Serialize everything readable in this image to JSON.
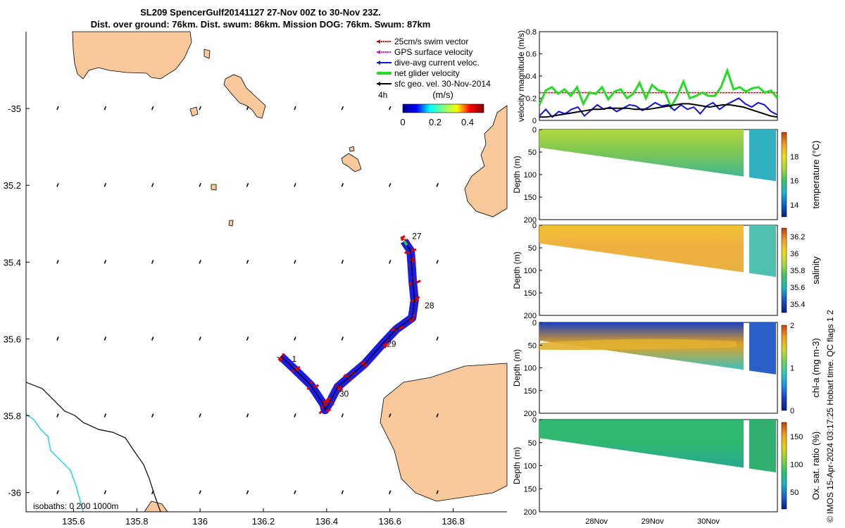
{
  "title_line1": "SL209 SpencerGulf20141127 27-Nov 00Z to 30-Nov 23Z.",
  "title_line2": "Dist. over ground: 76km. Dist. swum: 86km. Mission DOG: 76km. Swum: 87km",
  "credit": "© IMOS 15-Apr-2024 03:17:25 Hobart time. QC flags 1  2",
  "colors": {
    "land": "#f9c89b",
    "swim": "#e00000",
    "gps": "#e000e0",
    "current": "#1010e0",
    "net": "#22dd22",
    "geo": "#000000",
    "isobath200": "#000000",
    "isobath1000": "#22d3e6"
  },
  "chart_data": [
    {
      "type": "scatter",
      "subtype": "glider-track-map",
      "xlim": [
        135.45,
        136.97
      ],
      "ylim": [
        -36.05,
        -34.8
      ],
      "x_ticks": [
        "135.6",
        "135.8",
        "136",
        "136.2",
        "136.4",
        "136.6",
        "136.8"
      ],
      "x_tick_values": [
        135.6,
        135.8,
        136.0,
        136.2,
        136.4,
        136.6,
        136.8
      ],
      "y_ticks": [
        "-35",
        "35.2",
        "35.4",
        "35.6",
        "35.8",
        "-36"
      ],
      "y_tick_values": [
        -35.0,
        -35.2,
        -35.4,
        -35.6,
        -35.8,
        -36.0
      ],
      "legend": [
        {
          "label": "25cm/s swim vector",
          "color": "#e00000"
        },
        {
          "label": "GPS surface velocity",
          "color": "#e000e0"
        },
        {
          "label": "dive-avg current veloc.",
          "color": "#1010e0"
        },
        {
          "label": "net glider velocity",
          "color": "#22dd22"
        },
        {
          "label": "sfc geo. vel. 30-Nov-2014",
          "color": "#000000"
        }
      ],
      "legend_location": "top-right",
      "time_step_label": "4h",
      "colorbar": {
        "label": "(m/s)",
        "ticks": [
          "0",
          "0.2",
          "0.4"
        ],
        "tick_values": [
          0,
          0.2,
          0.4
        ],
        "range": [
          0,
          0.5
        ]
      },
      "day_labels": [
        {
          "text": "1",
          "lon": 136.29,
          "lat": -35.66
        },
        {
          "text": "27",
          "lon": 136.67,
          "lat": -35.34
        },
        {
          "text": "28",
          "lon": 136.71,
          "lat": -35.52
        },
        {
          "text": "29",
          "lon": 136.59,
          "lat": -35.62
        },
        {
          "text": "30",
          "lon": 136.44,
          "lat": -35.75
        }
      ],
      "track": [
        [
          136.645,
          -35.345
        ],
        [
          136.665,
          -35.37
        ],
        [
          136.668,
          -35.4
        ],
        [
          136.672,
          -35.45
        ],
        [
          136.678,
          -35.5
        ],
        [
          136.67,
          -35.545
        ],
        [
          136.62,
          -35.575
        ],
        [
          136.58,
          -35.61
        ],
        [
          136.52,
          -35.665
        ],
        [
          136.47,
          -35.7
        ],
        [
          136.435,
          -35.725
        ],
        [
          136.41,
          -35.765
        ],
        [
          136.395,
          -35.785
        ],
        [
          136.39,
          -35.77
        ],
        [
          136.35,
          -35.72
        ],
        [
          136.3,
          -35.68
        ],
        [
          136.255,
          -35.645
        ]
      ],
      "isobaths_label": "isobaths: 0   200  1000m"
    },
    {
      "type": "line",
      "ylabel": "velocity magnitude (m/s)",
      "ylim": [
        0,
        0.8
      ],
      "y_ticks": [
        "0",
        "0.2",
        "0.4",
        "0.6",
        "0.8"
      ],
      "y_tick_values": [
        0,
        0.2,
        0.4,
        0.6,
        0.8
      ],
      "xlim": [
        0,
        1
      ],
      "series": [
        {
          "name": "25cm/s swim vector",
          "color": "#e00000",
          "values": [
            0.25,
            0.25,
            0.25,
            0.25,
            0.25,
            0.25,
            0.25,
            0.25
          ]
        },
        {
          "name": "net glider velocity",
          "color": "#22dd22",
          "values": [
            0.14,
            0.27,
            0.3,
            0.24,
            0.28,
            0.22,
            0.3,
            0.15,
            0.25,
            0.24,
            0.3,
            0.19,
            0.26,
            0.28,
            0.2,
            0.24,
            0.34,
            0.2,
            0.32,
            0.27,
            0.26,
            0.12,
            0.22,
            0.35,
            0.2,
            0.22,
            0.25,
            0.22,
            0.22,
            0.3,
            0.45,
            0.28,
            0.3,
            0.26,
            0.29,
            0.3,
            0.25,
            0.27,
            0.2
          ]
        },
        {
          "name": "dive-avg current veloc.",
          "color": "#1010e0",
          "values": [
            0.04,
            0.1,
            0.03,
            0.08,
            0.06,
            0.1,
            0.12,
            0.04,
            0.09,
            0.14,
            0.1,
            0.12,
            0.08,
            0.11,
            0.14,
            0.13,
            0.09,
            0.12,
            0.16,
            0.13,
            0.14,
            0.09,
            0.14,
            0.1,
            0.12,
            0.06,
            0.13,
            0.16,
            0.1,
            0.14,
            0.17,
            0.2,
            0.15,
            0.12,
            0.16,
            0.14,
            0.08,
            0.05
          ]
        },
        {
          "name": "sfc geo. vel.",
          "color": "#000000",
          "values": [
            0.03,
            0.03,
            0.04,
            0.05,
            0.06,
            0.07,
            0.08,
            0.09,
            0.1,
            0.1,
            0.11,
            0.11,
            0.11,
            0.11,
            0.1,
            0.1,
            0.1,
            0.11,
            0.12,
            0.13,
            0.14,
            0.15,
            0.15,
            0.14,
            0.13,
            0.12,
            0.13,
            0.14,
            0.14,
            0.13,
            0.12,
            0.1,
            0.08,
            0.06,
            0.04,
            0.03
          ]
        }
      ]
    },
    {
      "type": "heatmap",
      "variable": "temperature",
      "ylabel": "Depth (m)",
      "clabel": "temperature (°C)",
      "ylim": [
        200,
        0
      ],
      "y_ticks": [
        "0",
        "50",
        "100",
        "150",
        "200"
      ],
      "y_tick_values": [
        0,
        50,
        100,
        150,
        200
      ],
      "c_ticks": [
        "14",
        "16",
        "18"
      ],
      "c_tick_values": [
        14,
        16,
        18
      ],
      "crange": [
        13,
        20
      ]
    },
    {
      "type": "heatmap",
      "variable": "salinity",
      "ylabel": "Depth (m)",
      "clabel": "salinity",
      "ylim": [
        200,
        0
      ],
      "y_ticks": [
        "0",
        "50",
        "100",
        "150",
        "200"
      ],
      "y_tick_values": [
        0,
        50,
        100,
        150,
        200
      ],
      "c_ticks": [
        "35.4",
        "35.6",
        "35.8",
        "36",
        "36.2"
      ],
      "c_tick_values": [
        35.4,
        35.6,
        35.8,
        36.0,
        36.2
      ],
      "crange": [
        35.3,
        36.3
      ]
    },
    {
      "type": "heatmap",
      "variable": "chl-a",
      "ylabel": "Depth (m)",
      "clabel": "chl-a (mg m-3)",
      "ylim": [
        200,
        0
      ],
      "y_ticks": [
        "0",
        "50",
        "100",
        "150",
        "200"
      ],
      "y_tick_values": [
        0,
        50,
        100,
        150,
        200
      ],
      "c_ticks": [
        "0",
        "1",
        "2"
      ],
      "c_tick_values": [
        0,
        1,
        2
      ],
      "crange": [
        0,
        2
      ]
    },
    {
      "type": "heatmap",
      "variable": "oxygen",
      "ylabel": "Depth (m)",
      "clabel": "Ox. sat. ratio (%)",
      "ylim": [
        200,
        0
      ],
      "y_ticks": [
        "0",
        "50",
        "100",
        "150",
        "200"
      ],
      "y_tick_values": [
        0,
        50,
        100,
        150,
        200
      ],
      "c_ticks": [
        "50",
        "100",
        "150"
      ],
      "c_tick_values": [
        50,
        100,
        150
      ],
      "crange": [
        20,
        175
      ]
    }
  ],
  "time_axis": {
    "ticks": [
      "28Nov",
      "29Nov",
      "30Nov"
    ],
    "tick_fractions": [
      0.24,
      0.475,
      0.71
    ]
  }
}
